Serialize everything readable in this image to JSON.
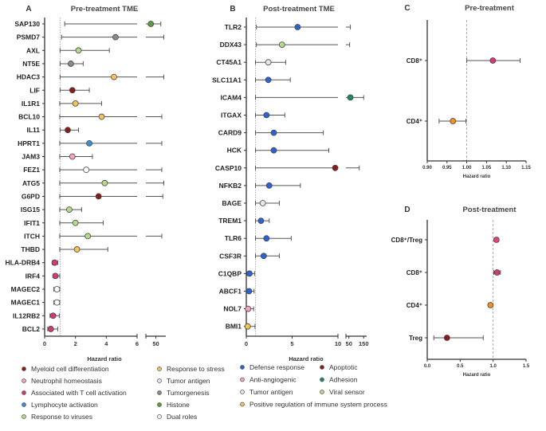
{
  "colors": {
    "myeloid": "#8b1a1a",
    "neutrophil": "#f4a6b4",
    "tcell": "#d63877",
    "lymphocyte": "#3a8fd8",
    "viruses": "#b6d98a",
    "stress": "#f6c25a",
    "tumor_antigen": "#e8e8e8",
    "tumorgenesis": "#8a8a8a",
    "histone": "#5a9e3a",
    "dual": "#ffffff",
    "defense": "#2b63d6",
    "apoptotic": "#8b1a1a",
    "anti_angiogenic": "#f4a6b4",
    "adhesion": "#1a8a6a",
    "viral_sensor": "#b6d98a",
    "positive_reg": "#f6c25a",
    "cd8": "#d63877",
    "cd4": "#f09020",
    "treg": "#8b1a1a",
    "cd8treg": "#e8407a"
  },
  "chart_data": [
    {
      "panel": "A",
      "type": "forest",
      "title": "Pre-treatment TME",
      "xlabel": "Hazard ratio",
      "reference_line": 1,
      "axis": {
        "segments": [
          {
            "range": [
              0,
              6
            ],
            "ticks": [
              "0",
              "2",
              "4",
              "6"
            ]
          },
          {
            "range": [
              40,
              60
            ],
            "ticks": [
              "50"
            ]
          }
        ],
        "break": true
      },
      "rows": [
        {
          "label": "SAP130",
          "hr": 45,
          "lo": 1.3,
          "hi": 55,
          "category": "histone",
          "hi_broken": true
        },
        {
          "label": "PSMD7",
          "hr": 4.6,
          "lo": 1.1,
          "hi": 58,
          "category": "tumorgenesis",
          "hi_broken": true
        },
        {
          "label": "AXL",
          "hr": 2.2,
          "lo": 1.0,
          "hi": 4.2,
          "category": "viruses"
        },
        {
          "label": "NT5E",
          "hr": 1.7,
          "lo": 1.0,
          "hi": 2.5,
          "category": "tumorgenesis"
        },
        {
          "label": "HDAC3",
          "hr": 4.5,
          "lo": 1.0,
          "hi": 58,
          "category": "stress",
          "hi_broken": true
        },
        {
          "label": "LIF",
          "hr": 1.8,
          "lo": 1.0,
          "hi": 2.9,
          "category": "myeloid"
        },
        {
          "label": "IL1R1",
          "hr": 2.0,
          "lo": 0.98,
          "hi": 3.7,
          "category": "stress"
        },
        {
          "label": "BCL10",
          "hr": 3.7,
          "lo": 0.98,
          "hi": 56,
          "category": "stress",
          "hi_broken": true
        },
        {
          "label": "IL11",
          "hr": 1.5,
          "lo": 1.0,
          "hi": 2.2,
          "category": "myeloid"
        },
        {
          "label": "HPRT1",
          "hr": 2.9,
          "lo": 0.98,
          "hi": 56,
          "category": "lymphocyte",
          "hi_broken": true
        },
        {
          "label": "JAM3",
          "hr": 1.8,
          "lo": 0.98,
          "hi": 3.1,
          "category": "neutrophil"
        },
        {
          "label": "FEZ1",
          "hr": 2.7,
          "lo": 0.98,
          "hi": 56,
          "category": "dual",
          "hi_broken": true
        },
        {
          "label": "ATG5",
          "hr": 3.9,
          "lo": 0.98,
          "hi": 58,
          "category": "viruses",
          "hi_broken": true
        },
        {
          "label": "G6PD",
          "hr": 3.5,
          "lo": 0.98,
          "hi": 57,
          "category": "myeloid",
          "hi_broken": true
        },
        {
          "label": "ISG15",
          "hr": 1.6,
          "lo": 0.98,
          "hi": 2.4,
          "category": "viruses"
        },
        {
          "label": "IFIT1",
          "hr": 2.0,
          "lo": 0.98,
          "hi": 3.8,
          "category": "viruses"
        },
        {
          "label": "ITCH",
          "hr": 2.8,
          "lo": 0.98,
          "hi": 56,
          "category": "viruses",
          "hi_broken": true
        },
        {
          "label": "THBD",
          "hr": 2.1,
          "lo": 0.98,
          "hi": 4.1,
          "category": "stress"
        },
        {
          "label": "HLA-DRB4",
          "hr": 0.65,
          "lo": 0.5,
          "hi": 0.85,
          "category": "tcell"
        },
        {
          "label": "IRF4",
          "hr": 0.7,
          "lo": 0.55,
          "hi": 0.98,
          "category": "tcell"
        },
        {
          "label": "MAGEC2",
          "hr": 0.8,
          "lo": 0.6,
          "hi": 0.98,
          "category": "dual"
        },
        {
          "label": "MAGEC1",
          "hr": 0.8,
          "lo": 0.6,
          "hi": 0.98,
          "category": "dual"
        },
        {
          "label": "IL12RB2",
          "hr": 0.55,
          "lo": 0.35,
          "hi": 0.95,
          "category": "tcell"
        },
        {
          "label": "BCL2",
          "hr": 0.4,
          "lo": 0.2,
          "hi": 0.85,
          "category": "tcell"
        }
      ],
      "legend": [
        {
          "label": "Myeloid cell differentiation",
          "category": "myeloid"
        },
        {
          "label": "Response to stress",
          "category": "stress"
        },
        {
          "label": "Neutrophil homeostasis",
          "category": "neutrophil"
        },
        {
          "label": "Tumor antigen",
          "category": "tumor_antigen"
        },
        {
          "label": "Associated with T cell activation",
          "category": "tcell"
        },
        {
          "label": "Tumorgenesis",
          "category": "tumorgenesis"
        },
        {
          "label": "Lymphocyte activation",
          "category": "lymphocyte"
        },
        {
          "label": "Histone",
          "category": "histone"
        },
        {
          "label": "Response to viruses",
          "category": "viruses"
        },
        {
          "label": "Dual roles",
          "category": "dual"
        }
      ]
    },
    {
      "panel": "B",
      "type": "forest",
      "title": "Post-treatment TME",
      "xlabel": "Hazard ratio",
      "reference_line": 1,
      "axis": {
        "segments": [
          {
            "range": [
              0,
              10
            ],
            "ticks": [
              "0",
              "5",
              "10"
            ]
          },
          {
            "range": [
              30,
              170
            ],
            "ticks": [
              "50",
              "150"
            ]
          }
        ],
        "break": true
      },
      "rows": [
        {
          "label": "TLR2",
          "hr": 5.6,
          "lo": 1.1,
          "hi": 60,
          "category": "defense",
          "hi_broken": true
        },
        {
          "label": "DDX43",
          "hr": 3.9,
          "lo": 1.1,
          "hi": 55,
          "category": "viral_sensor",
          "hi_broken": true
        },
        {
          "label": "CT45A1",
          "hr": 2.4,
          "lo": 1.0,
          "hi": 4.3,
          "category": "tumor_antigen"
        },
        {
          "label": "SLC11A1",
          "hr": 2.4,
          "lo": 1.0,
          "hi": 4.8,
          "category": "defense"
        },
        {
          "label": "ICAM4",
          "hr": 60,
          "lo": 1.0,
          "hi": 150,
          "category": "adhesion",
          "hi_broken": true
        },
        {
          "label": "ITGAX",
          "hr": 2.2,
          "lo": 1.0,
          "hi": 4.2,
          "category": "defense"
        },
        {
          "label": "CARD9",
          "hr": 3.0,
          "lo": 1.0,
          "hi": 8.4,
          "category": "defense"
        },
        {
          "label": "HCK",
          "hr": 3.0,
          "lo": 1.0,
          "hi": 9.0,
          "category": "defense"
        },
        {
          "label": "CASP10",
          "hr": 9.7,
          "lo": 1.0,
          "hi": 120,
          "category": "apoptotic",
          "hi_broken": true
        },
        {
          "label": "NFKB2",
          "hr": 2.5,
          "lo": 1.0,
          "hi": 5.9,
          "category": "defense"
        },
        {
          "label": "BAGE",
          "hr": 1.8,
          "lo": 1.0,
          "hi": 3.6,
          "category": "tumor_antigen"
        },
        {
          "label": "TREM1",
          "hr": 1.6,
          "lo": 1.0,
          "hi": 2.5,
          "category": "defense"
        },
        {
          "label": "TLR6",
          "hr": 2.2,
          "lo": 1.0,
          "hi": 4.9,
          "category": "defense"
        },
        {
          "label": "CSF3R",
          "hr": 1.9,
          "lo": 1.0,
          "hi": 3.6,
          "category": "defense"
        },
        {
          "label": "C1QBP",
          "hr": 0.35,
          "lo": 0.1,
          "hi": 0.9,
          "category": "defense"
        },
        {
          "label": "ABCF1",
          "hr": 0.3,
          "lo": 0.1,
          "hi": 0.85,
          "category": "defense"
        },
        {
          "label": "NOL7",
          "hr": 0.2,
          "lo": 0.05,
          "hi": 0.8,
          "category": "anti_angiogenic"
        },
        {
          "label": "BMI1",
          "hr": 0.15,
          "lo": 0.05,
          "hi": 0.95,
          "category": "positive_reg"
        }
      ],
      "legend": [
        {
          "label": "Defense response",
          "category": "defense"
        },
        {
          "label": "Apoptotic",
          "category": "apoptotic"
        },
        {
          "label": "Anti-angiogenic",
          "category": "anti_angiogenic"
        },
        {
          "label": "Adhesion",
          "category": "adhesion"
        },
        {
          "label": "Tumor antigen",
          "category": "tumor_antigen"
        },
        {
          "label": "Viral sensor",
          "category": "viral_sensor"
        },
        {
          "label": "Positive regulation of immune system process",
          "category": "positive_reg"
        }
      ]
    },
    {
      "panel": "C",
      "type": "forest",
      "title": "Pre-treatment",
      "xlabel": "Hazard ratio",
      "reference_line": 1.0,
      "axis": {
        "segments": [
          {
            "range": [
              0.9,
              1.15
            ],
            "ticks": [
              "0.90",
              "0.95",
              "1.00",
              "1.05",
              "1.10",
              "1.15"
            ]
          }
        ],
        "break": false
      },
      "rows": [
        {
          "label": "CD8⁺",
          "hr": 1.066,
          "lo": 1.0,
          "hi": 1.135,
          "category": "cd8"
        },
        {
          "label": "CD4⁺",
          "hr": 0.965,
          "lo": 0.93,
          "hi": 0.998,
          "category": "cd4"
        }
      ]
    },
    {
      "panel": "D",
      "type": "forest",
      "title": "Post-treatment",
      "xlabel": "Hazard ratio",
      "reference_line": 1.0,
      "axis": {
        "segments": [
          {
            "range": [
              0.0,
              1.5
            ],
            "ticks": [
              "0.0",
              "0.5",
              "1.0",
              "1.5"
            ]
          }
        ],
        "break": false
      },
      "rows": [
        {
          "label": "CD8⁺/Treg",
          "hr": 1.05,
          "lo": 1.02,
          "hi": 1.08,
          "category": "cd8treg"
        },
        {
          "label": "CD8⁺",
          "hr": 1.06,
          "lo": 1.01,
          "hi": 1.11,
          "category": "cd8"
        },
        {
          "label": "CD4⁺",
          "hr": 0.96,
          "lo": 0.93,
          "hi": 0.99,
          "category": "cd4"
        },
        {
          "label": "Treg",
          "hr": 0.3,
          "lo": 0.1,
          "hi": 0.85,
          "category": "treg"
        }
      ]
    }
  ]
}
